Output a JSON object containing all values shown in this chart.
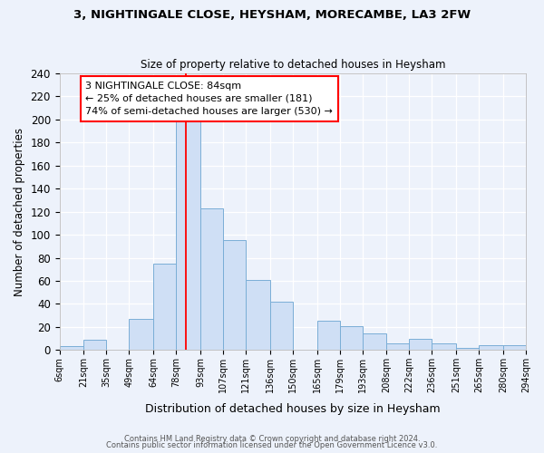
{
  "title": "3, NIGHTINGALE CLOSE, HEYSHAM, MORECAMBE, LA3 2FW",
  "subtitle": "Size of property relative to detached houses in Heysham",
  "xlabel": "Distribution of detached houses by size in Heysham",
  "ylabel": "Number of detached properties",
  "bar_color": "#cfdff5",
  "bar_edge_color": "#7aaed6",
  "background_color": "#edf2fb",
  "grid_color": "#ffffff",
  "bins": [
    6,
    21,
    35,
    49,
    64,
    78,
    93,
    107,
    121,
    136,
    150,
    165,
    179,
    193,
    208,
    222,
    236,
    251,
    265,
    280,
    294
  ],
  "values": [
    3,
    9,
    0,
    27,
    75,
    198,
    123,
    95,
    61,
    42,
    0,
    25,
    21,
    14,
    6,
    10,
    6,
    2,
    4,
    4
  ],
  "bin_labels": [
    "6sqm",
    "21sqm",
    "35sqm",
    "49sqm",
    "64sqm",
    "78sqm",
    "93sqm",
    "107sqm",
    "121sqm",
    "136sqm",
    "150sqm",
    "165sqm",
    "179sqm",
    "193sqm",
    "208sqm",
    "222sqm",
    "236sqm",
    "251sqm",
    "265sqm",
    "280sqm",
    "294sqm"
  ],
  "vline_x": 84,
  "vline_color": "red",
  "annotation_box_text": "3 NIGHTINGALE CLOSE: 84sqm\n← 25% of detached houses are smaller (181)\n74% of semi-detached houses are larger (530) →",
  "annotation_box_color": "red",
  "ylim": [
    0,
    240
  ],
  "yticks": [
    0,
    20,
    40,
    60,
    80,
    100,
    120,
    140,
    160,
    180,
    200,
    220,
    240
  ],
  "footer1": "Contains HM Land Registry data © Crown copyright and database right 2024.",
  "footer2": "Contains public sector information licensed under the Open Government Licence v3.0."
}
